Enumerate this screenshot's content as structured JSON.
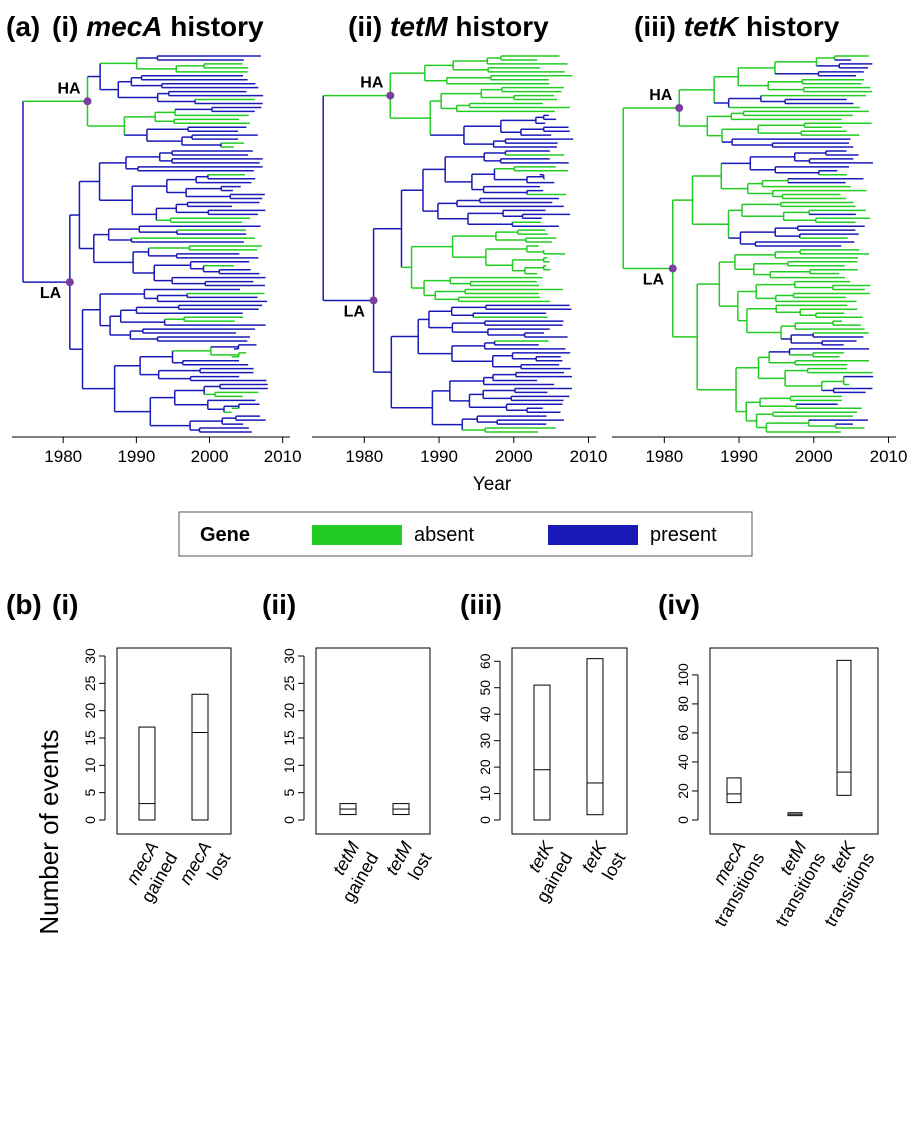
{
  "panel_a": {
    "label": "(a)",
    "xlabel": "Year",
    "x_ticks": [
      1980,
      1990,
      2000,
      2010
    ],
    "x_domain": [
      1973,
      2011
    ],
    "node_labels": [
      "HA",
      "LA"
    ],
    "panels": [
      {
        "num": "(i)",
        "gene": "mecA",
        "word": "history"
      },
      {
        "num": "(ii)",
        "gene": "tetM",
        "word": "history"
      },
      {
        "num": "(iii)",
        "gene": "tetK",
        "word": "history"
      }
    ],
    "legend": {
      "title": "Gene",
      "items": [
        {
          "label": "absent",
          "color": "#22cc22"
        },
        {
          "label": "present",
          "color": "#1a1ab8"
        }
      ]
    },
    "node_color": "#7b3f9e"
  },
  "panel_b": {
    "label": "(b)",
    "ylabel": "Number of events"
  },
  "chart_data": [
    {
      "type": "box",
      "panel": "(i)",
      "ylabel": "Number of events",
      "ylim": [
        0,
        30
      ],
      "yticks": [
        0,
        5,
        10,
        15,
        20,
        25,
        30
      ],
      "categories": [
        {
          "gene": "mecA",
          "word": "gained"
        },
        {
          "gene": "mecA",
          "word": "lost"
        }
      ],
      "boxes": [
        {
          "low": 0,
          "median": 3,
          "high": 17
        },
        {
          "low": 0,
          "median": 16,
          "high": 23
        }
      ]
    },
    {
      "type": "box",
      "panel": "(ii)",
      "ylim": [
        0,
        30
      ],
      "yticks": [
        0,
        5,
        10,
        15,
        20,
        25,
        30
      ],
      "categories": [
        {
          "gene": "tetM",
          "word": "gained"
        },
        {
          "gene": "tetM",
          "word": "lost"
        }
      ],
      "boxes": [
        {
          "low": 1,
          "median": 2,
          "high": 3
        },
        {
          "low": 1,
          "median": 2,
          "high": 3
        }
      ]
    },
    {
      "type": "box",
      "panel": "(iii)",
      "ylim": [
        0,
        62
      ],
      "yticks": [
        0,
        10,
        20,
        30,
        40,
        50,
        60
      ],
      "categories": [
        {
          "gene": "tetK",
          "word": "gained"
        },
        {
          "gene": "tetK",
          "word": "lost"
        }
      ],
      "boxes": [
        {
          "low": 0,
          "median": 19,
          "high": 51
        },
        {
          "low": 2,
          "median": 14,
          "high": 61
        }
      ]
    },
    {
      "type": "box",
      "panel": "(iv)",
      "ylim": [
        0,
        113
      ],
      "yticks": [
        0,
        20,
        40,
        60,
        80,
        100
      ],
      "categories": [
        {
          "gene": "mecA",
          "word": "transitions"
        },
        {
          "gene": "tetM",
          "word": "transitions"
        },
        {
          "gene": "tetK",
          "word": "transitions"
        }
      ],
      "boxes": [
        {
          "low": 12,
          "median": 18,
          "high": 29
        },
        {
          "low": 3,
          "median": 4,
          "high": 5
        },
        {
          "low": 17,
          "median": 33,
          "high": 110
        }
      ]
    }
  ]
}
